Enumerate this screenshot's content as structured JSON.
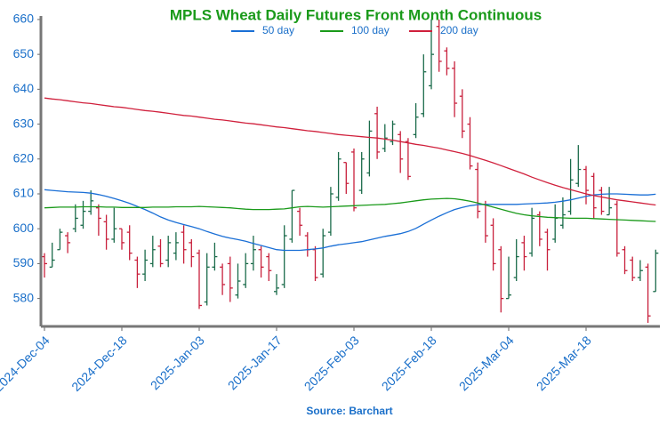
{
  "chart_data": {
    "type": "ohlc",
    "title": "MPLS Wheat Daily Futures Front Month Continuous",
    "source": "Source: Barchart",
    "x": [
      "2024-Dec-04",
      "2024-Dec-05",
      "2024-Dec-06",
      "2024-Dec-09",
      "2024-Dec-10",
      "2024-Dec-11",
      "2024-Dec-12",
      "2024-Dec-13",
      "2024-Dec-16",
      "2024-Dec-17",
      "2024-Dec-18",
      "2024-Dec-19",
      "2024-Dec-20",
      "2024-Dec-23",
      "2024-Dec-24",
      "2024-Dec-26",
      "2024-Dec-27",
      "2024-Dec-30",
      "2024-Dec-31",
      "2025-Jan-02",
      "2025-Jan-03",
      "2025-Jan-06",
      "2025-Jan-07",
      "2025-Jan-08",
      "2025-Jan-09",
      "2025-Jan-10",
      "2025-Jan-13",
      "2025-Jan-14",
      "2025-Jan-15",
      "2025-Jan-16",
      "2025-Jan-17",
      "2025-Jan-21",
      "2025-Jan-22",
      "2025-Jan-23",
      "2025-Jan-24",
      "2025-Jan-27",
      "2025-Jan-28",
      "2025-Jan-29",
      "2025-Jan-30",
      "2025-Jan-31",
      "2025-Feb-03",
      "2025-Feb-04",
      "2025-Feb-05",
      "2025-Feb-06",
      "2025-Feb-07",
      "2025-Feb-10",
      "2025-Feb-11",
      "2025-Feb-12",
      "2025-Feb-13",
      "2025-Feb-14",
      "2025-Feb-18",
      "2025-Feb-19",
      "2025-Feb-20",
      "2025-Feb-21",
      "2025-Feb-24",
      "2025-Feb-25",
      "2025-Feb-26",
      "2025-Feb-27",
      "2025-Feb-28",
      "2025-Mar-03",
      "2025-Mar-04",
      "2025-Mar-05",
      "2025-Mar-06",
      "2025-Mar-07",
      "2025-Mar-10",
      "2025-Mar-11",
      "2025-Mar-12",
      "2025-Mar-13",
      "2025-Mar-14",
      "2025-Mar-17",
      "2025-Mar-18",
      "2025-Mar-19",
      "2025-Mar-20",
      "2025-Mar-21",
      "2025-Mar-24",
      "2025-Mar-25",
      "2025-Mar-26",
      "2025-Mar-27",
      "2025-Mar-28",
      "2025-Mar-31"
    ],
    "open": [
      592,
      589,
      594,
      598,
      600,
      601,
      605,
      606,
      602,
      597,
      600,
      599,
      591,
      587,
      590,
      595,
      591,
      593,
      599,
      596,
      593,
      579,
      589,
      589,
      590,
      581,
      584,
      590,
      594,
      592,
      582,
      584,
      597,
      605,
      598,
      594,
      587,
      599,
      609,
      619,
      622,
      611,
      616,
      633,
      623,
      625,
      627,
      625,
      627,
      633,
      641,
      658,
      651,
      646,
      638,
      630,
      617,
      607,
      601,
      594,
      580,
      586,
      596,
      593,
      604,
      599,
      597,
      601,
      605,
      613,
      617,
      615,
      611,
      604,
      607,
      594,
      591,
      586,
      589,
      582
    ],
    "high": [
      593,
      596,
      600,
      599,
      607,
      608,
      611,
      607,
      604,
      606,
      600,
      601,
      592,
      594,
      598,
      597,
      598,
      599,
      601,
      597,
      594,
      593,
      596,
      590,
      592,
      590,
      593,
      598,
      595,
      593,
      587,
      601,
      611,
      606,
      599,
      595,
      600,
      612,
      622,
      619,
      623,
      622,
      631,
      635,
      630,
      631,
      628,
      626,
      636,
      650,
      660,
      660,
      652,
      648,
      640,
      632,
      619,
      608,
      603,
      595,
      592,
      597,
      598,
      606,
      605,
      600,
      607,
      609,
      620,
      624,
      618,
      616,
      612,
      612,
      608,
      595,
      592,
      591,
      590,
      594
    ],
    "low": [
      586,
      589,
      594,
      593,
      599,
      600,
      604,
      598,
      594,
      596,
      594,
      591,
      583,
      585,
      589,
      589,
      589,
      591,
      590,
      589,
      577,
      578,
      588,
      581,
      579,
      580,
      583,
      588,
      586,
      585,
      581,
      583,
      596,
      598,
      592,
      585,
      586,
      598,
      608,
      610,
      605,
      610,
      615,
      620,
      622,
      624,
      616,
      614,
      626,
      632,
      640,
      645,
      644,
      632,
      626,
      617,
      603,
      596,
      588,
      576,
      580,
      585,
      588,
      592,
      595,
      588,
      596,
      600,
      604,
      612,
      607,
      603,
      604,
      604,
      592,
      587,
      585,
      585,
      573,
      582
    ],
    "close": [
      590,
      591,
      599,
      596,
      603,
      605,
      608,
      603,
      597,
      600,
      596,
      593,
      587,
      591,
      594,
      590,
      596,
      596,
      594,
      592,
      578,
      589,
      592,
      584,
      583,
      585,
      590,
      594,
      589,
      588,
      583,
      598,
      611,
      601,
      594,
      586,
      598,
      610,
      620,
      613,
      606,
      620,
      628,
      622,
      626,
      630,
      620,
      615,
      632,
      645,
      650,
      648,
      646,
      636,
      628,
      618,
      605,
      598,
      590,
      580,
      581,
      592,
      592,
      603,
      597,
      594,
      603,
      604,
      614,
      617,
      611,
      606,
      605,
      606,
      593,
      588,
      586,
      588,
      575,
      593
    ],
    "up_color": "#1a6b4a",
    "down_color": "#c8203c",
    "series": [
      {
        "name": "50 day",
        "color": "#1a6fd6",
        "values": [
          611.2,
          611,
          610.8,
          610.6,
          610.5,
          610.4,
          610.2,
          609.8,
          609.3,
          608.7,
          608,
          607.3,
          606.4,
          605.5,
          604.5,
          603.4,
          602.5,
          601.8,
          601.2,
          600.6,
          600,
          599.2,
          598.5,
          597.8,
          597.3,
          596.9,
          596.4,
          595.8,
          595.2,
          594.6,
          594,
          593.8,
          593.8,
          593.8,
          594,
          594.2,
          594.5,
          595,
          595.4,
          595.7,
          596,
          596.3,
          596.8,
          597.3,
          597.8,
          598.2,
          598.6,
          599.2,
          600.1,
          601.3,
          602.5,
          603.6,
          604.6,
          605.5,
          606.1,
          606.6,
          606.9,
          607,
          607,
          607,
          607,
          607,
          607.1,
          607.2,
          607.3,
          607.4,
          607.6,
          607.9,
          608.3,
          608.8,
          609.3,
          609.7,
          609.9,
          610,
          610,
          609.9,
          609.8,
          609.7,
          609.7,
          609.9
        ]
      },
      {
        "name": "100 day",
        "color": "#1a9a1a",
        "values": [
          606,
          606.1,
          606.2,
          606.2,
          606.2,
          606.3,
          606.3,
          606.3,
          606.2,
          606.2,
          606.1,
          606.1,
          606.1,
          606.1,
          606.2,
          606.2,
          606.2,
          606.3,
          606.3,
          606.3,
          606.4,
          606.3,
          606.2,
          606.1,
          606,
          605.8,
          605.6,
          605.5,
          605.5,
          605.5,
          605.6,
          605.7,
          606,
          606.3,
          606.4,
          606.3,
          606.2,
          606.3,
          606.4,
          606.5,
          606.6,
          606.7,
          606.8,
          606.9,
          607,
          607.2,
          607.4,
          607.7,
          608,
          608.3,
          608.5,
          608.6,
          608.7,
          608.6,
          608.3,
          607.9,
          607.4,
          606.8,
          606.2,
          605.6,
          605,
          604.4,
          604,
          603.7,
          603.5,
          603.3,
          603.2,
          603.1,
          603,
          603,
          603,
          602.9,
          602.8,
          602.7,
          602.6,
          602.5,
          602.4,
          602.3,
          602.2,
          602.1
        ]
      },
      {
        "name": "200 day",
        "color": "#d0203c",
        "values": [
          637.5,
          637.2,
          637,
          636.7,
          636.4,
          636.1,
          635.9,
          635.6,
          635.3,
          635,
          634.8,
          634.5,
          634.2,
          633.9,
          633.7,
          633.4,
          633.1,
          632.8,
          632.5,
          632.3,
          632,
          631.7,
          631.4,
          631.2,
          630.9,
          630.6,
          630.3,
          630.1,
          629.8,
          629.5,
          629.2,
          629,
          628.7,
          628.4,
          628.1,
          627.9,
          627.6,
          627.3,
          627,
          626.8,
          626.6,
          626.4,
          626.2,
          626,
          625.7,
          625.4,
          625,
          624.6,
          624.2,
          623.9,
          623.5,
          623.1,
          622.6,
          622.1,
          621.6,
          621,
          620.3,
          619.6,
          618.9,
          618.1,
          617.3,
          616.5,
          615.7,
          614.8,
          614,
          613.2,
          612.5,
          611.8,
          611.2,
          610.6,
          610,
          609.5,
          609.1,
          608.7,
          608.3,
          608,
          607.7,
          607.4,
          607.1,
          606.8
        ]
      }
    ],
    "ylim": [
      572,
      661
    ],
    "yticks": [
      580,
      590,
      600,
      610,
      620,
      630,
      640,
      650,
      660
    ],
    "xticks": [
      "2024-Dec-04",
      "2024-Dec-18",
      "2025-Jan-03",
      "2025-Jan-17",
      "2025-Feb-03",
      "2025-Feb-18",
      "2025-Mar-04",
      "2025-Mar-18"
    ],
    "grid": false
  }
}
